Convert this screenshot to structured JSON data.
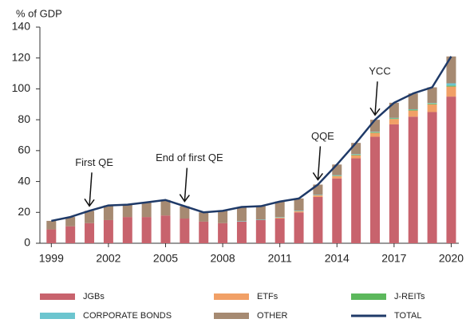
{
  "chart_data": {
    "type": "bar",
    "ylabel": "% of GDP",
    "stacked": true,
    "x": [
      1999,
      2000,
      2001,
      2002,
      2003,
      2004,
      2005,
      2006,
      2007,
      2008,
      2009,
      2010,
      2011,
      2012,
      2013,
      2014,
      2015,
      2016,
      2017,
      2018,
      2019,
      2020
    ],
    "xlim": [
      1998.4,
      2020.4
    ],
    "xticks": [
      1999,
      2002,
      2005,
      2008,
      2011,
      2014,
      2017,
      2020
    ],
    "ylim": [
      0,
      140
    ],
    "yticks": [
      0,
      20,
      40,
      60,
      80,
      100,
      120,
      140
    ],
    "grid": false,
    "legend": "bottom",
    "series": [
      {
        "name": "JGBs",
        "type": "bar",
        "color": "#c8636d",
        "values": [
          9,
          11,
          13,
          15,
          17,
          17,
          18,
          16,
          14,
          13,
          14,
          15,
          16,
          20,
          30,
          42,
          55,
          69,
          77,
          82,
          85,
          95
        ]
      },
      {
        "name": "ETFs",
        "type": "bar",
        "color": "#f1a066",
        "values": [
          0,
          0,
          0,
          0,
          0,
          0,
          0,
          0,
          0,
          0,
          0,
          0,
          0.5,
          0.7,
          1,
          1.5,
          2,
          2.5,
          3.5,
          4,
          5,
          6.5
        ]
      },
      {
        "name": "J-REITs",
        "type": "bar",
        "color": "#5cb85c",
        "values": [
          0,
          0,
          0,
          0,
          0,
          0,
          0,
          0,
          0,
          0,
          0,
          0,
          0.1,
          0.1,
          0.1,
          0.3,
          0.4,
          0.4,
          0.4,
          0.5,
          0.5,
          0.6
        ]
      },
      {
        "name": "CORPORATE BONDS",
        "type": "bar",
        "color": "#6cc5cf",
        "values": [
          0,
          0,
          0,
          0,
          0,
          0,
          0,
          0,
          0,
          0,
          0.3,
          0.3,
          0.3,
          0.3,
          0.3,
          0.3,
          0.3,
          0.3,
          0.3,
          0.3,
          0.3,
          1.5
        ]
      },
      {
        "name": "OTHER",
        "type": "bar",
        "color": "#a68a72",
        "values": [
          5.5,
          6,
          8,
          9.5,
          8,
          9.5,
          10,
          8,
          6,
          8,
          9.2,
          8.7,
          10.1,
          7.9,
          6.6,
          6.9,
          7.3,
          7.8,
          9.8,
          10.2,
          10.2,
          17.4
        ]
      },
      {
        "name": "TOTAL",
        "type": "line",
        "color": "#1f3a68",
        "values": [
          14.5,
          17,
          21,
          24.5,
          25,
          26.5,
          28,
          24,
          20,
          21,
          23.5,
          24,
          27,
          29,
          38,
          51,
          65,
          80,
          91,
          97,
          101,
          121
        ]
      }
    ],
    "annotations": [
      {
        "text": "First QE",
        "x": 2001
      },
      {
        "text": "End of first QE",
        "x": 2006
      },
      {
        "text": "QQE",
        "x": 2013
      },
      {
        "text": "YCC",
        "x": 2016
      }
    ]
  }
}
